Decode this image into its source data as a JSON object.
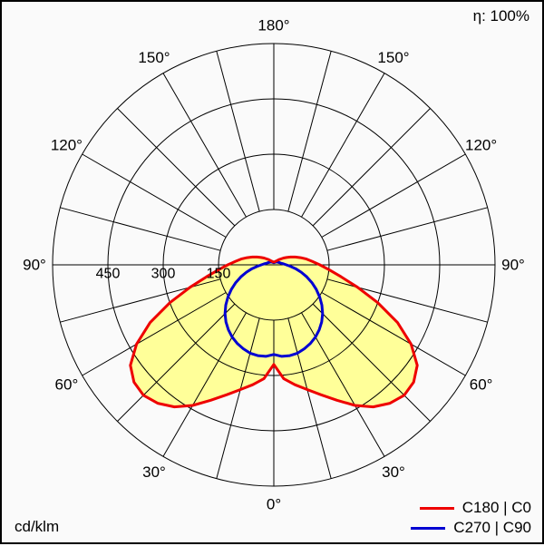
{
  "header": {
    "efficiency": "η: 100%"
  },
  "footer": {
    "unit": "cd/klm"
  },
  "legend": {
    "items": [
      {
        "label": "C180 | C0",
        "color": "#ee0000"
      },
      {
        "label": "C270 | C90",
        "color": "#0000d2"
      }
    ]
  },
  "chart_data": {
    "type": "polar",
    "unit": "cd/klm",
    "grid_color": "#000000",
    "symmetric": true,
    "radial_axis": {
      "max": 600,
      "rings": [
        150,
        300,
        450,
        600
      ],
      "tick_labels": [
        "150",
        "300",
        "450"
      ]
    },
    "angular_axis": {
      "spoke_step_deg": 15,
      "tick_labels": [
        {
          "gamma": 0,
          "label": "0°"
        },
        {
          "gamma": 30,
          "label": "30°"
        },
        {
          "gamma": 60,
          "label": "60°"
        },
        {
          "gamma": 90,
          "label": "90°"
        },
        {
          "gamma": 120,
          "label": "120°"
        },
        {
          "gamma": 150,
          "label": "150°"
        },
        {
          "gamma": 180,
          "label": "180°"
        }
      ]
    },
    "series": [
      {
        "name": "C180 | C0",
        "color": "#ee0000",
        "fill_color": "#ffff99",
        "width": 3,
        "gamma_deg": [
          0,
          5,
          10,
          15,
          20,
          25,
          30,
          35,
          40,
          45,
          50,
          55,
          60,
          65,
          70,
          75,
          80,
          85,
          90,
          95,
          100,
          105,
          110,
          115,
          120,
          125,
          130,
          135,
          140,
          145,
          150,
          155,
          160,
          165,
          170,
          175,
          180
        ],
        "values": [
          270,
          310,
          330,
          350,
          375,
          405,
          440,
          470,
          490,
          500,
          495,
          475,
          430,
          370,
          300,
          235,
          185,
          150,
          125,
          105,
          90,
          75,
          62,
          50,
          40,
          32,
          25,
          20,
          16,
          13,
          12,
          10,
          9,
          8,
          8,
          8,
          8
        ]
      },
      {
        "name": "C270 | C90",
        "color": "#0000d2",
        "fill_color": null,
        "width": 3,
        "gamma_deg": [
          0,
          5,
          10,
          15,
          20,
          25,
          30,
          35,
          40,
          45,
          50,
          55,
          60,
          65,
          70,
          75,
          80,
          85,
          90,
          95,
          100,
          105,
          110,
          115,
          120,
          125,
          130,
          135,
          140,
          145,
          150,
          155,
          160,
          165,
          170,
          175,
          180
        ],
        "values": [
          243,
          249,
          250,
          248,
          242,
          235,
          226,
          215,
          202,
          187,
          170,
          152,
          133,
          114,
          95,
          77,
          60,
          45,
          34,
          27,
          22,
          19,
          17,
          15,
          14,
          13,
          12,
          12,
          11,
          10,
          8,
          8,
          7,
          7,
          6,
          6,
          6
        ]
      }
    ]
  }
}
